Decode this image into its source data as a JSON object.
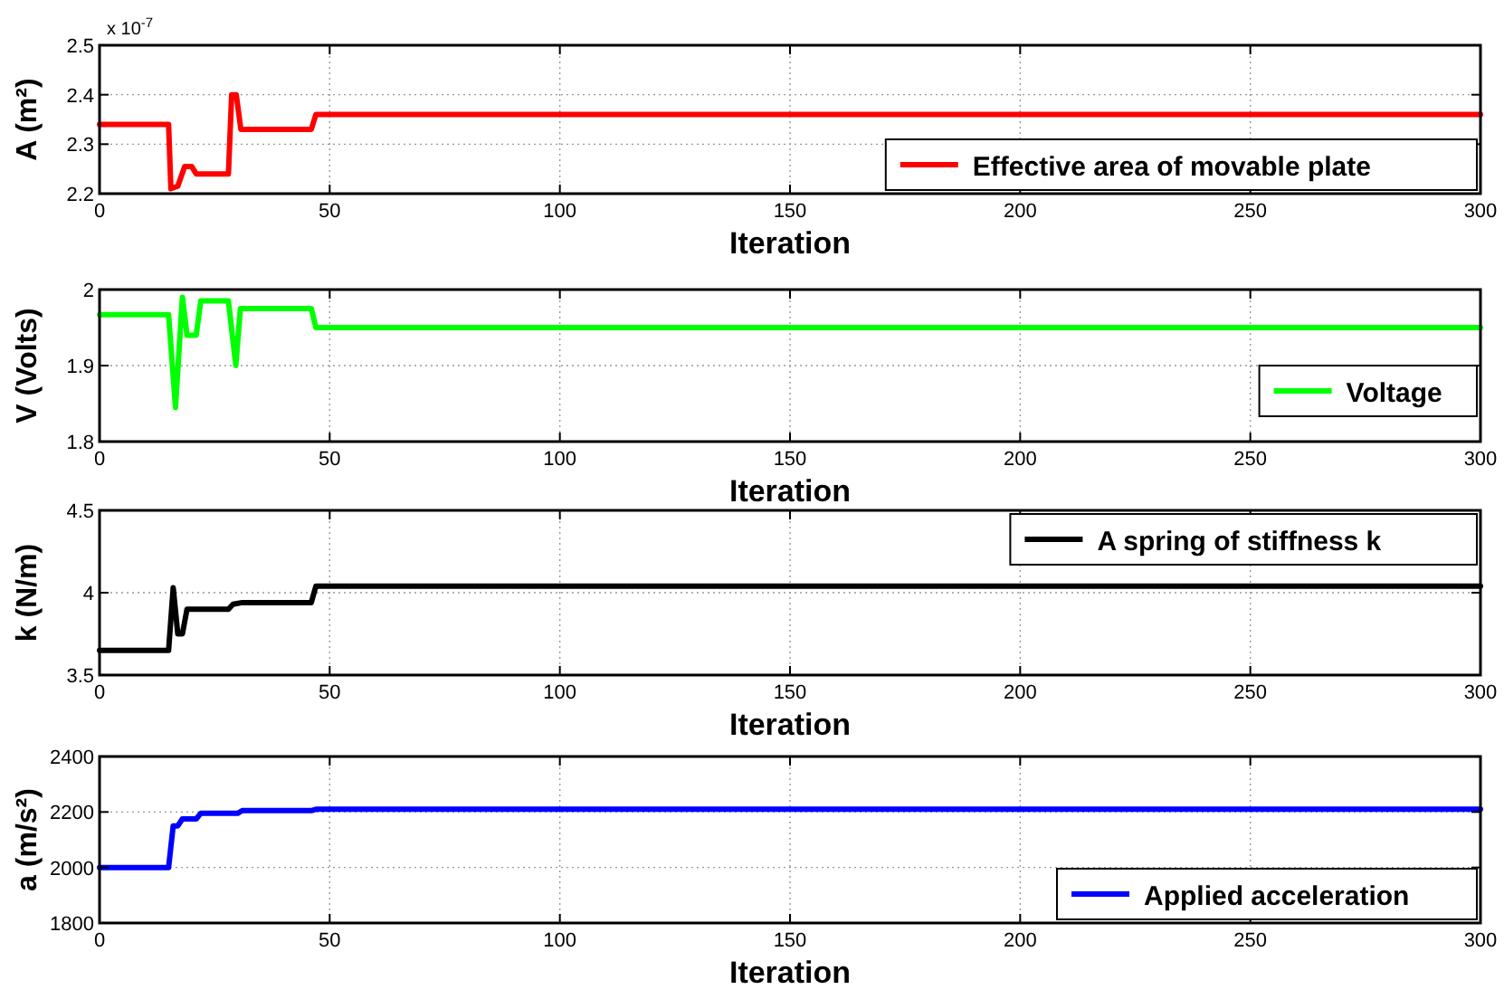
{
  "chart_data": [
    {
      "type": "line",
      "xlabel": "Iteration",
      "ylabel": "A (m²)",
      "annotations": [
        "x 10$^{-7}$"
      ],
      "xlim": [
        0,
        300
      ],
      "xticks": [
        0,
        50,
        100,
        150,
        200,
        250,
        300
      ],
      "ylim": [
        2.2,
        2.5
      ],
      "yticks": [
        2.2,
        2.3,
        2.4,
        2.5
      ],
      "grid": true,
      "legend": "bottom right",
      "marker": "none",
      "line_style": "solid",
      "series": [
        {
          "name": "Effective area of movable plate",
          "color": "#ff0000",
          "x": [
            0,
            15,
            15.5,
            17,
            18.5,
            20,
            21,
            28,
            28.7,
            29.7,
            30.7,
            46,
            47,
            300
          ],
          "values": [
            2.34,
            2.34,
            2.21,
            2.215,
            2.255,
            2.255,
            2.24,
            2.24,
            2.4,
            2.4,
            2.33,
            2.33,
            2.36,
            2.36
          ]
        }
      ]
    },
    {
      "type": "line",
      "xlabel": "Iteration",
      "ylabel": "V (Volts)",
      "xlim": [
        0,
        300
      ],
      "xticks": [
        0,
        50,
        100,
        150,
        200,
        250,
        300
      ],
      "ylim": [
        1.8,
        2
      ],
      "yticks": [
        1.8,
        1.9,
        2
      ],
      "grid": true,
      "legend": "right",
      "marker": "none",
      "line_style": "solid",
      "series": [
        {
          "name": "Voltage",
          "color": "#00ff00",
          "x": [
            0,
            15,
            16.5,
            18,
            19,
            21,
            22,
            28,
            29.6,
            30.6,
            46,
            47,
            300
          ],
          "values": [
            1.967,
            1.967,
            1.845,
            1.99,
            1.94,
            1.94,
            1.985,
            1.985,
            1.9,
            1.975,
            1.975,
            1.95,
            1.95
          ]
        }
      ]
    },
    {
      "type": "line",
      "xlabel": "Iteration",
      "ylabel": "k (N/m)",
      "xlim": [
        0,
        300
      ],
      "xticks": [
        0,
        50,
        100,
        150,
        200,
        250,
        300
      ],
      "ylim": [
        3.5,
        4.5
      ],
      "yticks": [
        3.5,
        4,
        4.5
      ],
      "grid": true,
      "legend": "top right",
      "marker": "none",
      "line_style": "solid",
      "series": [
        {
          "name": "A spring of stiffness k",
          "color": "#000000",
          "x": [
            0,
            15,
            16,
            17,
            18,
            19,
            28,
            29,
            31,
            46,
            47,
            300
          ],
          "values": [
            3.65,
            3.65,
            4.03,
            3.75,
            3.75,
            3.9,
            3.9,
            3.93,
            3.94,
            3.94,
            4.04,
            4.04
          ]
        }
      ]
    },
    {
      "type": "line",
      "xlabel": "Iteration",
      "ylabel": "a (m/s²)",
      "xlim": [
        0,
        300
      ],
      "xticks": [
        0,
        50,
        100,
        150,
        200,
        250,
        300
      ],
      "ylim": [
        1800,
        2400
      ],
      "yticks": [
        1800,
        2000,
        2200,
        2400
      ],
      "grid": true,
      "legend": "bottom right",
      "marker": "none",
      "line_style": "solid",
      "series": [
        {
          "name": "Applied acceleration",
          "color": "#0000ff",
          "x": [
            0,
            15,
            16,
            17,
            18,
            21,
            22,
            30,
            31,
            46,
            47,
            300
          ],
          "values": [
            2000,
            2000,
            2150,
            2150,
            2175,
            2175,
            2195,
            2195,
            2205,
            2205,
            2210,
            2210
          ]
        }
      ]
    }
  ]
}
